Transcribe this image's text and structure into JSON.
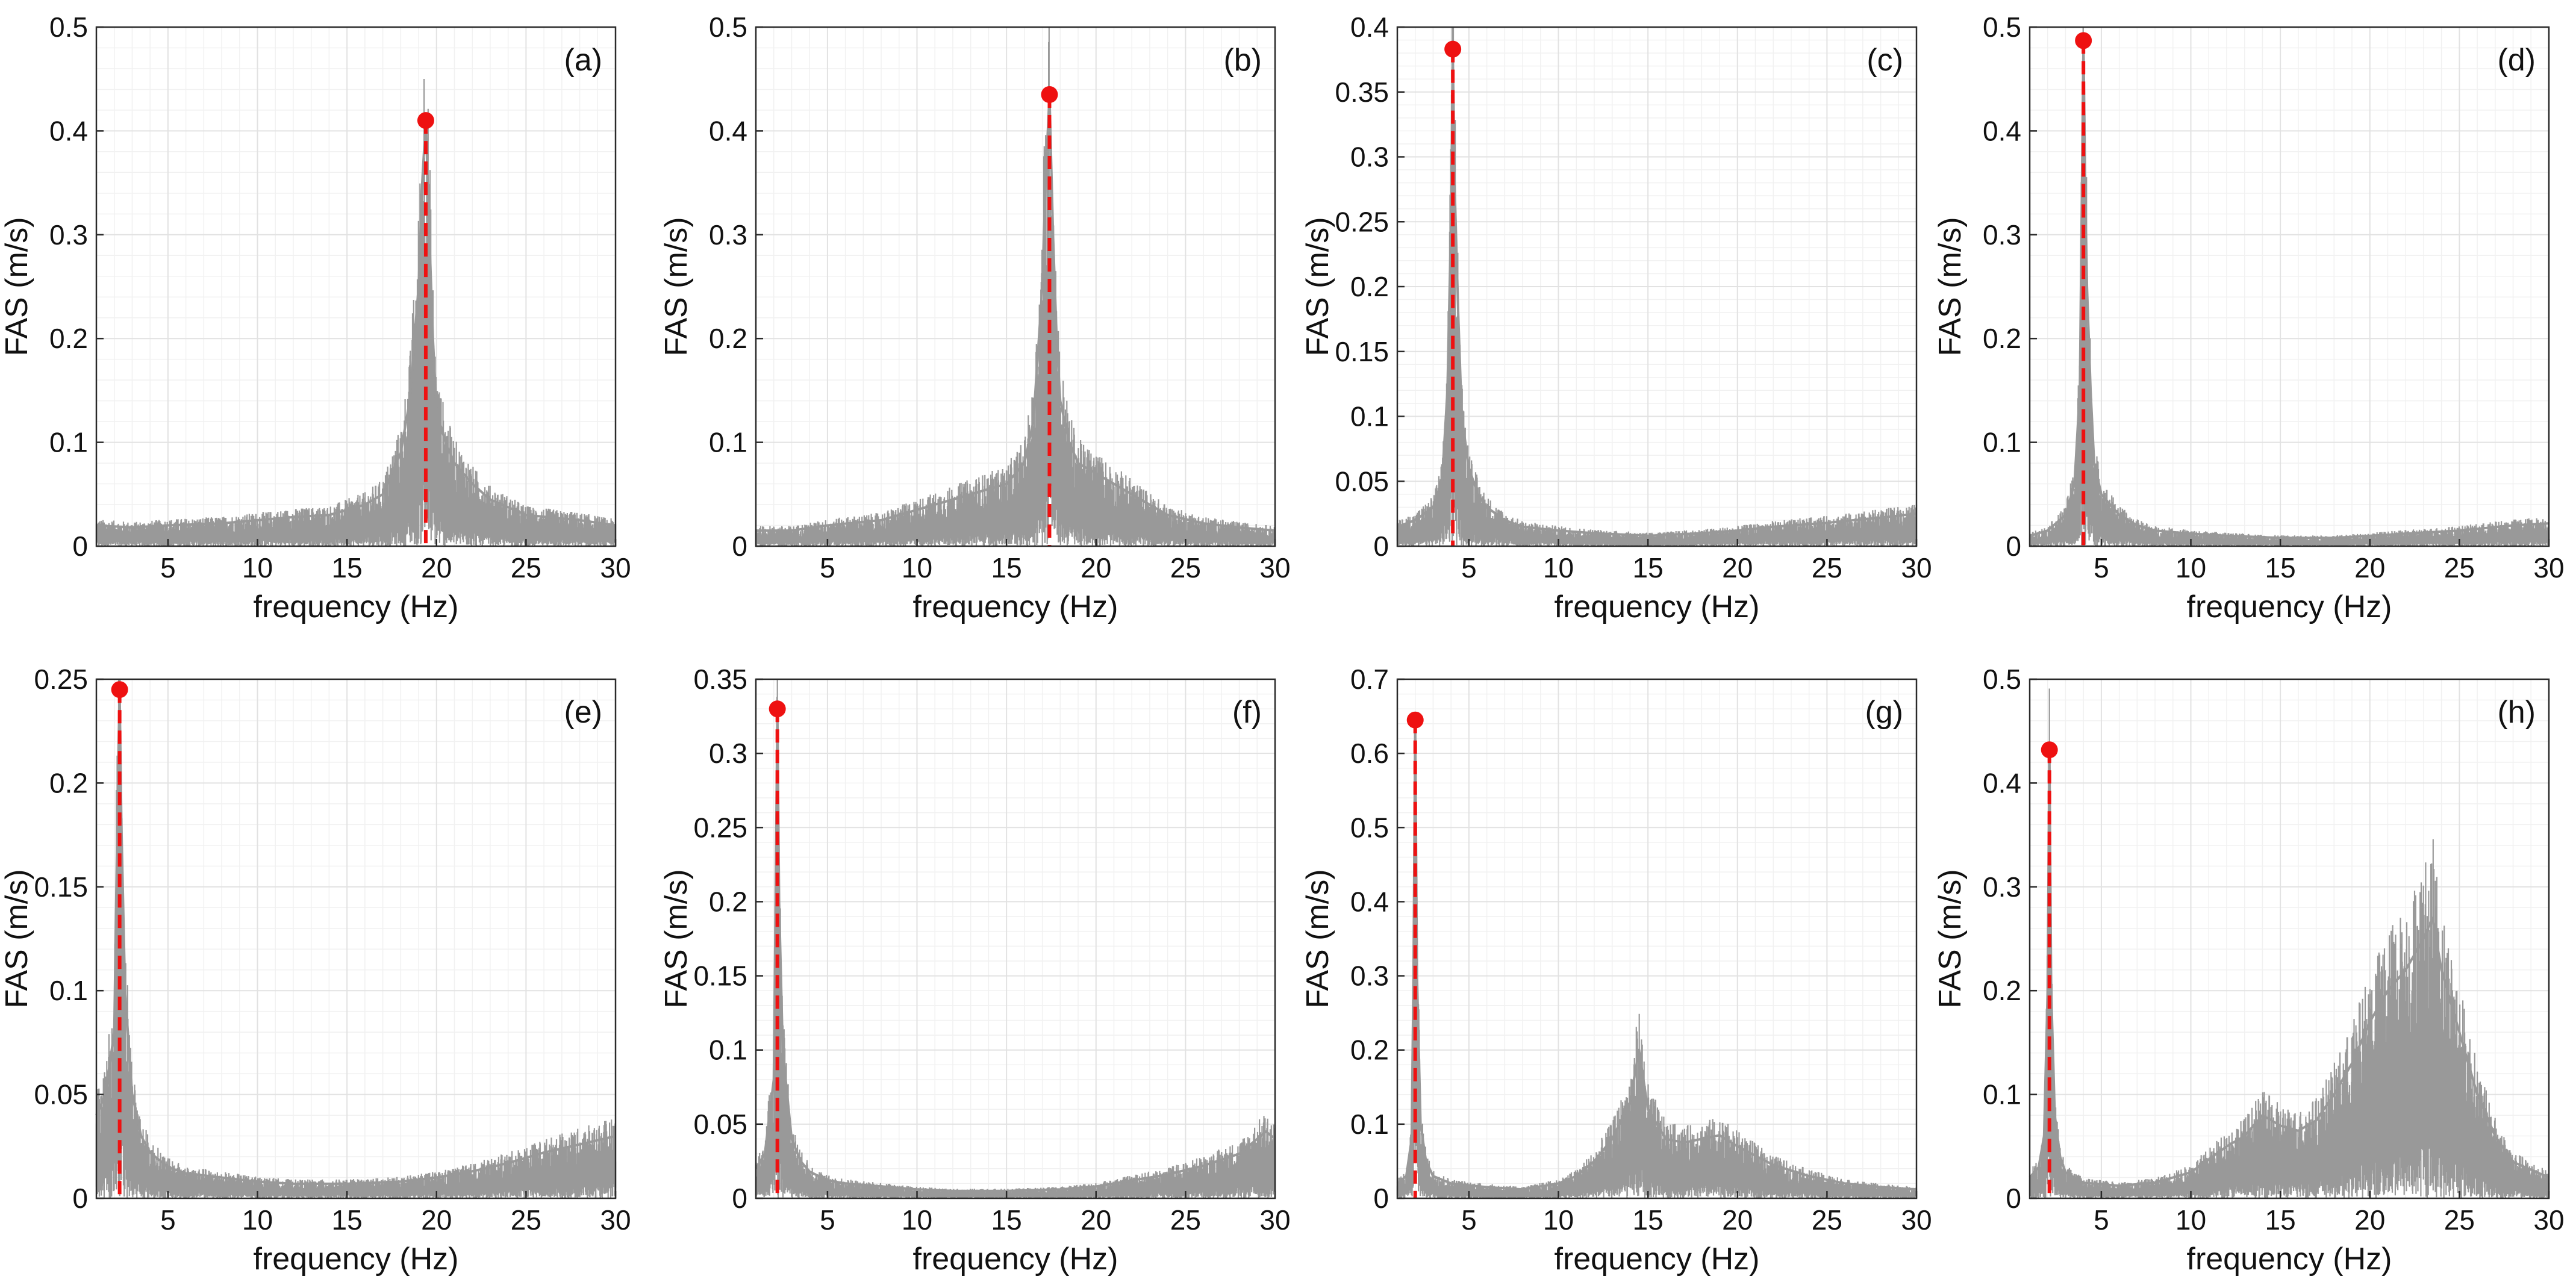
{
  "figure": {
    "colors": {
      "spectrum": "#999999",
      "peak": "#ee1111",
      "grid_major": "#e2e2e2",
      "grid_minor": "#f1f1f1",
      "axes": "#2a2a2a"
    }
  },
  "chart_data": [
    {
      "panel": "(a)",
      "type": "line",
      "xlabel": "frequency (Hz)",
      "ylabel": "FAS (m/s)",
      "xlim": [
        1,
        30
      ],
      "ylim": [
        0,
        0.5
      ],
      "xticks": [
        5,
        10,
        15,
        20,
        25,
        30
      ],
      "yticks": [
        "0",
        "0.1",
        "0.2",
        "0.3",
        "0.4",
        "0.5"
      ],
      "peak": {
        "x": 19.4,
        "y": 0.41
      },
      "series": [
        {
          "name": "FAS",
          "x": [
            1,
            3,
            5,
            8,
            10,
            12,
            14,
            15,
            16,
            17,
            17.5,
            18,
            18.5,
            19,
            19.2,
            19.4,
            19.6,
            19.8,
            20,
            20.5,
            21,
            22,
            23,
            25,
            28,
            30
          ],
          "y": [
            0.02,
            0.018,
            0.02,
            0.022,
            0.025,
            0.028,
            0.03,
            0.035,
            0.04,
            0.05,
            0.07,
            0.09,
            0.14,
            0.25,
            0.35,
            0.41,
            0.3,
            0.2,
            0.13,
            0.1,
            0.08,
            0.06,
            0.045,
            0.03,
            0.025,
            0.02
          ]
        }
      ]
    },
    {
      "panel": "(b)",
      "type": "line",
      "xlabel": "frequency (Hz)",
      "ylabel": "FAS (m/s)",
      "xlim": [
        1,
        30
      ],
      "ylim": [
        0,
        0.5
      ],
      "xticks": [
        5,
        10,
        15,
        20,
        25,
        30
      ],
      "yticks": [
        "0",
        "0.1",
        "0.2",
        "0.3",
        "0.4",
        "0.5"
      ],
      "peak": {
        "x": 17.4,
        "y": 0.435
      },
      "series": [
        {
          "name": "FAS",
          "x": [
            1,
            3,
            5,
            8,
            10,
            12,
            13,
            14,
            15,
            16,
            16.5,
            17,
            17.2,
            17.4,
            17.6,
            17.8,
            18,
            18.5,
            19,
            20,
            21,
            22,
            24,
            26,
            28,
            30
          ],
          "y": [
            0.015,
            0.015,
            0.02,
            0.025,
            0.035,
            0.045,
            0.05,
            0.055,
            0.06,
            0.08,
            0.12,
            0.25,
            0.36,
            0.435,
            0.3,
            0.2,
            0.14,
            0.1,
            0.08,
            0.07,
            0.06,
            0.05,
            0.03,
            0.022,
            0.018,
            0.015
          ]
        }
      ]
    },
    {
      "panel": "(c)",
      "type": "line",
      "xlabel": "frequency (Hz)",
      "ylabel": "FAS (m/s)",
      "xlim": [
        1,
        30
      ],
      "ylim": [
        0,
        0.4
      ],
      "xticks": [
        5,
        10,
        15,
        20,
        25,
        30
      ],
      "yticks": [
        "0",
        "0.05",
        "0.1",
        "0.15",
        "0.2",
        "0.25",
        "0.3",
        "0.35",
        "0.4"
      ],
      "peak": {
        "x": 4.1,
        "y": 0.383
      },
      "series": [
        {
          "name": "FAS",
          "x": [
            1,
            2,
            3,
            3.5,
            3.8,
            4,
            4.1,
            4.2,
            4.4,
            4.6,
            5,
            5.5,
            6,
            7,
            8,
            10,
            12,
            15,
            18,
            20,
            22,
            25,
            28,
            30
          ],
          "y": [
            0.015,
            0.02,
            0.03,
            0.05,
            0.12,
            0.25,
            0.383,
            0.28,
            0.18,
            0.1,
            0.06,
            0.04,
            0.03,
            0.02,
            0.015,
            0.012,
            0.01,
            0.008,
            0.01,
            0.012,
            0.015,
            0.018,
            0.022,
            0.025
          ]
        }
      ]
    },
    {
      "panel": "(d)",
      "type": "line",
      "xlabel": "frequency (Hz)",
      "ylabel": "FAS (m/s)",
      "xlim": [
        1,
        30
      ],
      "ylim": [
        0,
        0.5
      ],
      "xticks": [
        5,
        10,
        15,
        20,
        25,
        30
      ],
      "yticks": [
        "0",
        "0.1",
        "0.2",
        "0.3",
        "0.4",
        "0.5"
      ],
      "peak": {
        "x": 4.0,
        "y": 0.487
      },
      "series": [
        {
          "name": "FAS",
          "x": [
            1,
            2,
            3,
            3.5,
            3.8,
            4,
            4.1,
            4.2,
            4.4,
            4.6,
            5,
            5.5,
            6,
            7,
            8,
            10,
            12,
            15,
            18,
            20,
            22,
            25,
            28,
            30
          ],
          "y": [
            0.01,
            0.015,
            0.03,
            0.06,
            0.15,
            0.487,
            0.35,
            0.25,
            0.15,
            0.08,
            0.05,
            0.04,
            0.03,
            0.02,
            0.015,
            0.012,
            0.01,
            0.008,
            0.008,
            0.01,
            0.012,
            0.015,
            0.02,
            0.022
          ]
        }
      ]
    },
    {
      "panel": "(e)",
      "type": "line",
      "xlabel": "frequency (Hz)",
      "ylabel": "FAS (m/s)",
      "xlim": [
        1,
        30
      ],
      "ylim": [
        0,
        0.25
      ],
      "xticks": [
        5,
        10,
        15,
        20,
        25,
        30
      ],
      "yticks": [
        "0",
        "0.05",
        "0.1",
        "0.15",
        "0.2",
        "0.25"
      ],
      "peak": {
        "x": 2.3,
        "y": 0.245
      },
      "series": [
        {
          "name": "FAS",
          "x": [
            1,
            1.5,
            2,
            2.2,
            2.3,
            2.4,
            2.6,
            3,
            3.5,
            4,
            5,
            6,
            8,
            10,
            12,
            15,
            18,
            20,
            22,
            24,
            26,
            28,
            30
          ],
          "y": [
            0.04,
            0.05,
            0.08,
            0.2,
            0.245,
            0.18,
            0.1,
            0.05,
            0.03,
            0.022,
            0.015,
            0.012,
            0.01,
            0.008,
            0.007,
            0.007,
            0.008,
            0.01,
            0.013,
            0.017,
            0.022,
            0.026,
            0.03
          ]
        }
      ]
    },
    {
      "panel": "(f)",
      "type": "line",
      "xlabel": "frequency (Hz)",
      "ylabel": "FAS (m/s)",
      "xlim": [
        1,
        30
      ],
      "ylim": [
        0,
        0.35
      ],
      "xticks": [
        5,
        10,
        15,
        20,
        25,
        30
      ],
      "yticks": [
        "0",
        "0.05",
        "0.1",
        "0.15",
        "0.2",
        "0.25",
        "0.3",
        "0.35"
      ],
      "peak": {
        "x": 2.2,
        "y": 0.33
      },
      "series": [
        {
          "name": "FAS",
          "x": [
            1,
            1.5,
            2,
            2.1,
            2.2,
            2.3,
            2.5,
            3,
            3.5,
            4,
            5,
            6,
            8,
            10,
            12,
            15,
            18,
            20,
            22,
            24,
            26,
            28,
            29.5,
            30
          ],
          "y": [
            0.02,
            0.03,
            0.08,
            0.2,
            0.33,
            0.2,
            0.1,
            0.04,
            0.025,
            0.018,
            0.012,
            0.01,
            0.008,
            0.006,
            0.005,
            0.005,
            0.006,
            0.008,
            0.012,
            0.016,
            0.022,
            0.03,
            0.045,
            0.04
          ]
        }
      ]
    },
    {
      "panel": "(g)",
      "type": "line",
      "xlabel": "frequency (Hz)",
      "ylabel": "FAS (m/s)",
      "xlim": [
        1,
        30
      ],
      "ylim": [
        0,
        0.7
      ],
      "xticks": [
        5,
        10,
        15,
        20,
        25,
        30
      ],
      "yticks": [
        "0",
        "0.1",
        "0.2",
        "0.3",
        "0.4",
        "0.5",
        "0.6",
        "0.7"
      ],
      "peak": {
        "x": 2.0,
        "y": 0.645
      },
      "series": [
        {
          "name": "FAS",
          "x": [
            1,
            1.5,
            1.8,
            1.9,
            2,
            2.1,
            2.3,
            2.6,
            3,
            4,
            6,
            8,
            10,
            11,
            12,
            13,
            14,
            14.5,
            15,
            16,
            17,
            18,
            19,
            20,
            22,
            24,
            26,
            28,
            30
          ],
          "y": [
            0.02,
            0.03,
            0.08,
            0.3,
            0.645,
            0.3,
            0.1,
            0.05,
            0.03,
            0.02,
            0.015,
            0.012,
            0.02,
            0.03,
            0.05,
            0.08,
            0.13,
            0.2,
            0.12,
            0.08,
            0.075,
            0.08,
            0.085,
            0.07,
            0.045,
            0.03,
            0.02,
            0.015,
            0.012
          ]
        }
      ]
    },
    {
      "panel": "(h)",
      "type": "line",
      "xlabel": "frequency (Hz)",
      "ylabel": "FAS (m/s)",
      "xlim": [
        1,
        30
      ],
      "ylim": [
        0,
        0.5
      ],
      "xticks": [
        5,
        10,
        15,
        20,
        25,
        30
      ],
      "yticks": [
        "0",
        "0.1",
        "0.2",
        "0.3",
        "0.4",
        "0.5"
      ],
      "peak": {
        "x": 2.1,
        "y": 0.432
      },
      "series": [
        {
          "name": "FAS",
          "x": [
            1,
            1.5,
            1.8,
            2,
            2.1,
            2.2,
            2.4,
            2.7,
            3,
            4,
            6,
            8,
            10,
            12,
            13,
            14,
            15,
            16,
            17,
            18,
            19,
            20,
            21,
            22,
            23,
            23.5,
            24,
            25,
            26,
            27,
            28,
            30
          ],
          "y": [
            0.02,
            0.03,
            0.06,
            0.2,
            0.432,
            0.2,
            0.08,
            0.04,
            0.025,
            0.015,
            0.012,
            0.015,
            0.025,
            0.05,
            0.06,
            0.08,
            0.07,
            0.065,
            0.075,
            0.1,
            0.13,
            0.17,
            0.2,
            0.22,
            0.25,
            0.27,
            0.22,
            0.16,
            0.1,
            0.06,
            0.035,
            0.02
          ]
        }
      ]
    }
  ]
}
